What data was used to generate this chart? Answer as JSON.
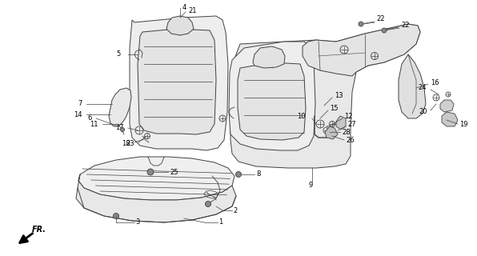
{
  "bg_color": "#ffffff",
  "lc": "#404040",
  "lw": 0.7,
  "fs": 6.0,
  "fig_w": 5.96,
  "fig_h": 3.2,
  "dpi": 100
}
